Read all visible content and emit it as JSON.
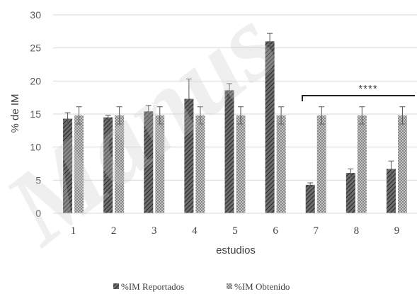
{
  "chart_data": {
    "type": "bar",
    "categories": [
      "1",
      "2",
      "3",
      "4",
      "5",
      "6",
      "7",
      "8",
      "9"
    ],
    "series": [
      {
        "name": "%IM Reportados",
        "values": [
          14.3,
          14.5,
          15.4,
          17.3,
          18.6,
          26.0,
          4.3,
          6.1,
          6.7
        ],
        "errors": [
          0.9,
          0.3,
          0.9,
          3.0,
          1.0,
          1.2,
          0.3,
          0.6,
          1.2
        ]
      },
      {
        "name": "%IM Obtenido",
        "values": [
          14.8,
          14.8,
          14.8,
          14.8,
          14.8,
          14.8,
          14.8,
          14.8,
          14.8
        ],
        "errors": [
          1.3,
          1.3,
          1.3,
          1.3,
          1.3,
          1.3,
          1.3,
          1.3,
          1.3
        ]
      }
    ],
    "ylabel": "% de IM",
    "xlabel": "estudios",
    "ylim": [
      0,
      30
    ],
    "yticks": [
      "0",
      "5",
      "10",
      "15",
      "20",
      "25",
      "30"
    ],
    "grid": true,
    "legend_position": "bottom",
    "annotation": "****",
    "watermark": "Manus",
    "colors": {
      "reportados": "#6e6e6e",
      "obtenido": "#9a9a9a",
      "grid": "#d9d9d9"
    }
  }
}
